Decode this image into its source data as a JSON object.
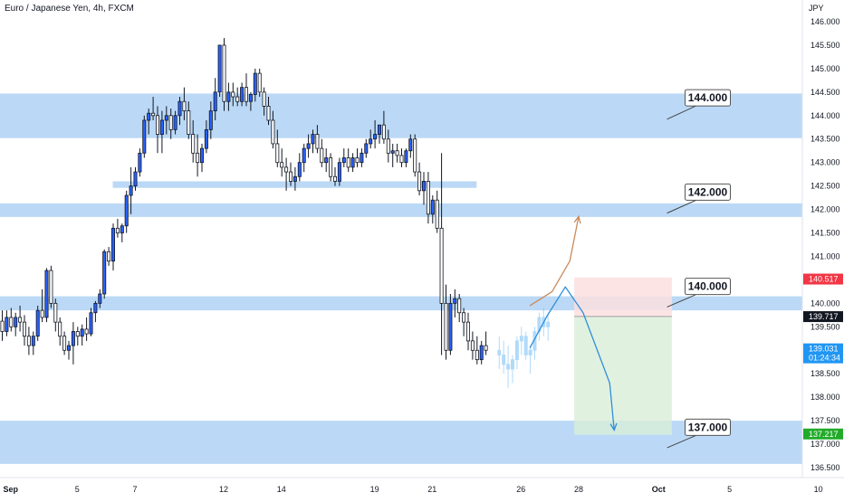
{
  "header": {
    "symbol": "Euro / Japanese Yen, 4h, FXCM",
    "unit": "JPY"
  },
  "colors": {
    "up_body": "#2962ff",
    "down_body": "#ffffff",
    "candle_line": "#131722",
    "zone": "#bbd9f6",
    "target_zone": "#d9eed8",
    "stop_zone": "#fbdfe1",
    "up_arrow": "#c98a5a",
    "down_arrow": "#2f8fd8",
    "price_red": "#f23645",
    "price_black": "#131722",
    "price_blue": "#2196f3",
    "price_green": "#22ab2a"
  },
  "chart_data": {
    "type": "candlestick",
    "ylim": [
      136.2,
      146.35
    ],
    "y_ticks": [
      "146.000",
      "145.500",
      "145.000",
      "144.500",
      "144.000",
      "143.500",
      "143.000",
      "142.500",
      "142.000",
      "141.500",
      "141.000",
      "140.500",
      "140.000",
      "139.500",
      "139.000",
      "138.500",
      "138.000",
      "137.500",
      "137.000",
      "136.500"
    ],
    "x_ticks": [
      {
        "label": "Sep",
        "bar": 2
      },
      {
        "label": "5",
        "bar": 17
      },
      {
        "label": "7",
        "bar": 30
      },
      {
        "label": "12",
        "bar": 50
      },
      {
        "label": "14",
        "bar": 63
      },
      {
        "label": "19",
        "bar": 84
      },
      {
        "label": "21",
        "bar": 97
      },
      {
        "label": "26",
        "bar": 117
      },
      {
        "label": "28",
        "bar": 130
      },
      {
        "label": "Oct",
        "bar": 148
      },
      {
        "label": "5",
        "bar": 164
      },
      {
        "label": "10",
        "bar": 184
      }
    ],
    "ohlc": [
      [
        139.62,
        139.85,
        139.2,
        139.4
      ],
      [
        139.4,
        139.85,
        139.3,
        139.7
      ],
      [
        139.7,
        139.9,
        139.4,
        139.5
      ],
      [
        139.5,
        139.8,
        139.3,
        139.7
      ],
      [
        139.7,
        139.95,
        139.4,
        139.6
      ],
      [
        139.6,
        139.75,
        139.1,
        139.3
      ],
      [
        139.3,
        139.5,
        138.9,
        139.1
      ],
      [
        139.1,
        139.4,
        138.9,
        139.3
      ],
      [
        139.3,
        139.95,
        139.2,
        139.85
      ],
      [
        139.85,
        140.3,
        139.6,
        139.7
      ],
      [
        139.7,
        140.75,
        139.6,
        140.7
      ],
      [
        140.7,
        140.8,
        139.9,
        140.0
      ],
      [
        140.0,
        140.1,
        139.4,
        139.6
      ],
      [
        139.6,
        139.7,
        139.1,
        139.3
      ],
      [
        139.3,
        139.4,
        138.9,
        139.0
      ],
      [
        139.0,
        139.2,
        138.8,
        139.1
      ],
      [
        139.1,
        139.6,
        138.7,
        139.4
      ],
      [
        139.4,
        139.5,
        139.1,
        139.3
      ],
      [
        139.3,
        139.55,
        139.1,
        139.45
      ],
      [
        139.45,
        139.7,
        139.2,
        139.35
      ],
      [
        139.35,
        139.9,
        139.3,
        139.8
      ],
      [
        139.8,
        140.05,
        139.6,
        140.0
      ],
      [
        140.0,
        140.3,
        139.9,
        140.2
      ],
      [
        140.2,
        141.15,
        140.1,
        141.1
      ],
      [
        141.1,
        141.2,
        140.8,
        140.9
      ],
      [
        140.9,
        141.7,
        140.7,
        141.6
      ],
      [
        141.6,
        141.8,
        141.4,
        141.5
      ],
      [
        141.5,
        141.7,
        141.3,
        141.65
      ],
      [
        141.65,
        142.4,
        141.5,
        142.3
      ],
      [
        142.3,
        142.9,
        141.9,
        142.5
      ],
      [
        142.5,
        142.9,
        142.4,
        142.8
      ],
      [
        142.8,
        143.3,
        142.7,
        143.2
      ],
      [
        143.2,
        144.0,
        143.1,
        143.9
      ],
      [
        143.9,
        144.15,
        143.6,
        144.05
      ],
      [
        144.05,
        144.4,
        143.9,
        144.0
      ],
      [
        144.0,
        144.2,
        143.2,
        143.6
      ],
      [
        143.6,
        144.1,
        143.2,
        143.9
      ],
      [
        143.9,
        144.2,
        143.6,
        144.0
      ],
      [
        144.0,
        144.15,
        143.5,
        143.7
      ],
      [
        143.7,
        144.1,
        143.6,
        144.0
      ],
      [
        144.0,
        144.4,
        143.8,
        144.3
      ],
      [
        144.3,
        144.6,
        143.9,
        144.1
      ],
      [
        144.1,
        144.3,
        143.5,
        143.6
      ],
      [
        143.6,
        143.9,
        143.0,
        143.2
      ],
      [
        143.2,
        143.6,
        142.7,
        143.0
      ],
      [
        143.0,
        143.4,
        142.8,
        143.3
      ],
      [
        143.3,
        143.9,
        143.2,
        143.7
      ],
      [
        143.7,
        144.3,
        143.5,
        144.1
      ],
      [
        144.1,
        144.8,
        143.9,
        144.5
      ],
      [
        144.5,
        145.5,
        144.4,
        145.5
      ],
      [
        145.5,
        145.65,
        144.1,
        144.3
      ],
      [
        144.3,
        144.7,
        144.1,
        144.5
      ],
      [
        144.5,
        144.7,
        144.2,
        144.4
      ],
      [
        144.4,
        144.6,
        144.2,
        144.3
      ],
      [
        144.3,
        144.7,
        144.2,
        144.6
      ],
      [
        144.6,
        144.9,
        144.2,
        144.3
      ],
      [
        144.3,
        144.5,
        144.1,
        144.45
      ],
      [
        144.45,
        145.0,
        144.3,
        144.9
      ],
      [
        144.9,
        145.0,
        144.4,
        144.5
      ],
      [
        144.5,
        144.6,
        144.0,
        144.2
      ],
      [
        144.2,
        144.4,
        143.8,
        143.9
      ],
      [
        143.9,
        144.1,
        143.3,
        143.4
      ],
      [
        143.4,
        143.7,
        142.9,
        143.0
      ],
      [
        143.0,
        143.3,
        142.7,
        142.9
      ],
      [
        142.9,
        143.1,
        142.4,
        142.8
      ],
      [
        142.8,
        143.0,
        142.5,
        142.6
      ],
      [
        142.6,
        142.9,
        142.4,
        142.7
      ],
      [
        142.7,
        143.2,
        142.6,
        143.0
      ],
      [
        143.0,
        143.4,
        142.8,
        143.3
      ],
      [
        143.3,
        143.6,
        143.1,
        143.4
      ],
      [
        143.4,
        143.7,
        143.2,
        143.6
      ],
      [
        143.6,
        143.8,
        143.2,
        143.3
      ],
      [
        143.3,
        143.5,
        142.9,
        143.0
      ],
      [
        143.0,
        143.3,
        142.8,
        143.1
      ],
      [
        143.1,
        143.2,
        142.6,
        142.7
      ],
      [
        142.7,
        142.9,
        142.5,
        142.6
      ],
      [
        142.6,
        143.1,
        142.5,
        143.0
      ],
      [
        143.0,
        143.3,
        142.9,
        143.1
      ],
      [
        143.1,
        143.3,
        142.8,
        142.9
      ],
      [
        142.9,
        143.2,
        142.8,
        143.1
      ],
      [
        143.1,
        143.3,
        142.9,
        143.0
      ],
      [
        143.0,
        143.3,
        142.9,
        143.2
      ],
      [
        143.2,
        143.5,
        143.1,
        143.4
      ],
      [
        143.4,
        143.7,
        143.3,
        143.5
      ],
      [
        143.5,
        143.9,
        143.3,
        143.6
      ],
      [
        143.6,
        143.8,
        143.4,
        143.8
      ],
      [
        143.8,
        144.1,
        143.4,
        143.5
      ],
      [
        143.5,
        143.7,
        143.0,
        143.2
      ],
      [
        143.2,
        143.4,
        142.9,
        143.25
      ],
      [
        143.25,
        143.4,
        143.0,
        143.15
      ],
      [
        143.15,
        143.3,
        142.9,
        143.0
      ],
      [
        143.0,
        143.3,
        142.9,
        143.25
      ],
      [
        143.25,
        143.6,
        143.1,
        143.5
      ],
      [
        143.5,
        143.6,
        142.7,
        142.8
      ],
      [
        142.8,
        143.0,
        142.3,
        142.4
      ],
      [
        142.4,
        142.8,
        142.1,
        142.6
      ],
      [
        142.6,
        142.8,
        141.7,
        141.9
      ],
      [
        141.9,
        142.3,
        141.7,
        142.2
      ],
      [
        142.2,
        142.4,
        141.5,
        141.6
      ],
      [
        141.6,
        143.2,
        138.9,
        140.0
      ],
      [
        140.0,
        140.4,
        138.8,
        139.0
      ],
      [
        139.0,
        140.2,
        138.9,
        140.0
      ],
      [
        140.0,
        140.3,
        139.7,
        140.1
      ],
      [
        140.1,
        140.2,
        139.6,
        139.8
      ],
      [
        139.8,
        139.9,
        139.3,
        139.6
      ],
      [
        139.6,
        139.8,
        139.0,
        139.2
      ],
      [
        139.2,
        139.4,
        138.8,
        139.0
      ],
      [
        139.0,
        139.3,
        138.7,
        138.8
      ],
      [
        138.8,
        139.2,
        138.7,
        139.1
      ],
      [
        139.1,
        139.4,
        138.9,
        139.0
      ]
    ],
    "projection": [
      [
        139.0,
        139.3,
        138.6,
        138.9
      ],
      [
        138.9,
        139.2,
        138.5,
        138.7
      ],
      [
        138.7,
        139.1,
        138.2,
        138.6
      ],
      [
        138.6,
        138.9,
        138.3,
        138.8
      ],
      [
        138.8,
        139.3,
        138.6,
        139.2
      ],
      [
        139.2,
        139.5,
        138.9,
        139.3
      ],
      [
        139.3,
        139.4,
        138.8,
        138.9
      ],
      [
        138.9,
        139.1,
        138.5,
        139.0
      ],
      [
        139.0,
        139.5,
        138.8,
        139.4
      ],
      [
        139.4,
        139.8,
        139.2,
        139.7
      ],
      [
        139.7,
        139.9,
        139.3,
        139.5
      ],
      [
        139.5,
        139.8,
        139.2,
        139.6
      ]
    ],
    "zones": [
      {
        "name": "144 zone",
        "bar_from": -2,
        "bar_to": 188,
        "low": 143.52,
        "high": 144.47
      },
      {
        "name": "142.6 strip",
        "bar_from": 25,
        "bar_to": 107,
        "low": 142.46,
        "high": 142.6
      },
      {
        "name": "142 zone",
        "bar_from": -2,
        "bar_to": 188,
        "low": 141.84,
        "high": 142.13
      },
      {
        "name": "140 zone",
        "bar_from": -2,
        "bar_to": 188,
        "low": 139.85,
        "high": 140.15
      },
      {
        "name": "137 zone",
        "bar_from": -2,
        "bar_to": 188,
        "low": 136.58,
        "high": 137.5
      }
    ],
    "position": {
      "bar_from": 129,
      "bar_to": 151,
      "stop": 140.55,
      "entry": 139.72,
      "target": 137.2
    },
    "callouts": [
      {
        "label": "144.000",
        "bar": 155,
        "price": 144.38,
        "pointer_bar": 154,
        "pointer_price": 143.98
      },
      {
        "label": "142.000",
        "bar": 155,
        "price": 142.37,
        "pointer_bar": 154,
        "pointer_price": 141.98
      },
      {
        "label": "140.000",
        "bar": 155,
        "price": 140.36,
        "pointer_bar": 154,
        "pointer_price": 139.98
      },
      {
        "label": "137.000",
        "bar": 155,
        "price": 137.36,
        "pointer_bar": 154,
        "pointer_price": 136.98
      }
    ],
    "arrows": {
      "up": [
        [
          119,
          139.95
        ],
        [
          124,
          140.25
        ],
        [
          128,
          140.9
        ],
        [
          130,
          141.85
        ]
      ],
      "down": [
        [
          119,
          139.05
        ],
        [
          123,
          139.75
        ],
        [
          127,
          140.35
        ],
        [
          131,
          139.8
        ],
        [
          137,
          138.3
        ],
        [
          138,
          137.3
        ]
      ]
    },
    "price_labels": [
      {
        "value": "140.517",
        "price": 140.517,
        "color": "price_red"
      },
      {
        "value": "139.717",
        "price": 139.717,
        "color": "price_black"
      },
      {
        "value": "139.031",
        "sub": "01:24:34",
        "price": 139.031,
        "color": "price_blue"
      },
      {
        "value": "137.217",
        "price": 137.217,
        "color": "price_green"
      }
    ]
  }
}
